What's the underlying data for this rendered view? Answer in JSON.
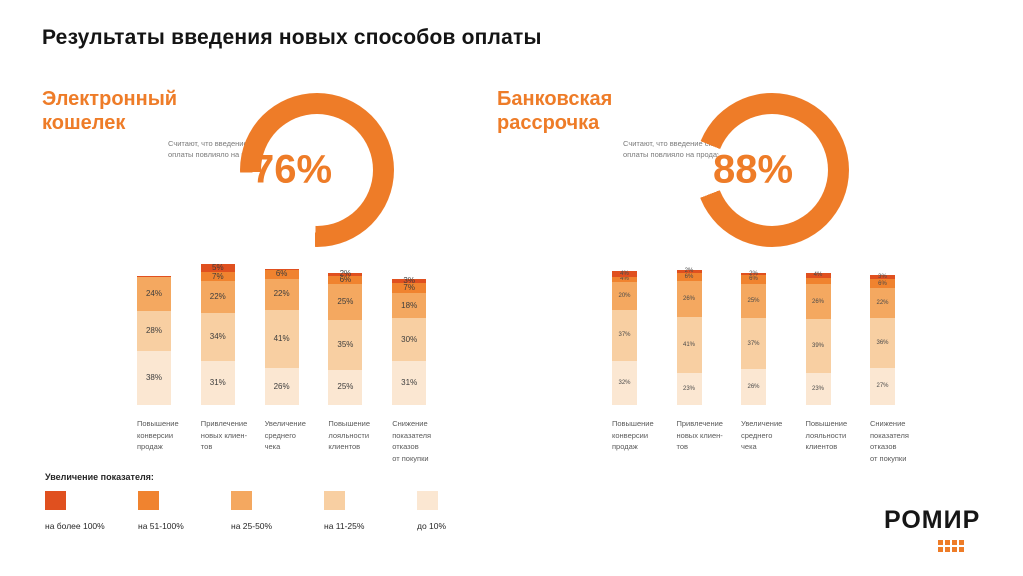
{
  "title": "Результаты введения новых способов оплаты",
  "brand": {
    "logo_text": "РОМИР",
    "accent": "#ee7c28"
  },
  "sections": [
    {
      "heading_line1": "Электронный",
      "heading_line2": "кошелек",
      "caption_line1": "Считают, что введение способа",
      "caption_line2": "оплаты повлияло на продажи",
      "percent": "76%",
      "percent_value": 76
    },
    {
      "heading_line1": "Банковская",
      "heading_line2": "рассрочка",
      "caption_line1": "Считают, что введение способа",
      "caption_line2": "оплаты повлияло на продажи",
      "percent": "88%",
      "percent_value": 88
    }
  ],
  "legend": {
    "title": "Увеличение показателя:",
    "items": [
      {
        "label": "на более 100%",
        "color": "#e0501f"
      },
      {
        "label": "на 51-100%",
        "color": "#f0832f"
      },
      {
        "label": "на 25-50%",
        "color": "#f4a860"
      },
      {
        "label": "на 11-25%",
        "color": "#f8cfa2"
      },
      {
        "label": "до 10%",
        "color": "#fbe7d2"
      }
    ]
  },
  "chart_data": [
    {
      "type": "stacked-bar",
      "title": "Электронный кошелек",
      "percent_affected": 76,
      "tiers_bottom_to_top": [
        "до 10%",
        "на 11-25%",
        "на 25-50%",
        "на 51-100%",
        "на более 100%"
      ],
      "categories": [
        "Повышение конверсии продаж",
        "Привлечение новых клиентов",
        "Увеличение среднего чека",
        "Повышение лояльности клиентов",
        "Снижение показателя отказов от покупки"
      ],
      "category_lines": [
        [
          "Повышение",
          "конверсии",
          "продаж"
        ],
        [
          "Привлечение",
          "новых клиен-",
          "тов"
        ],
        [
          "Увеличение",
          "среднего",
          "чека"
        ],
        [
          "Повышение",
          "лояльности",
          "клиентов"
        ],
        [
          "Снижение",
          "показателя",
          "отказов",
          "от покупки"
        ]
      ],
      "bars": [
        {
          "values": [
            38,
            28,
            24,
            0,
            1
          ],
          "labels": [
            "38%",
            "28%",
            "24%",
            "",
            ""
          ]
        },
        {
          "values": [
            31,
            34,
            22,
            7,
            5
          ],
          "labels": [
            "31%",
            "34%",
            "22%",
            "7%",
            "5%"
          ]
        },
        {
          "values": [
            26,
            41,
            22,
            6,
            1
          ],
          "labels": [
            "26%",
            "41%",
            "22%",
            "6%",
            ""
          ]
        },
        {
          "values": [
            25,
            35,
            25,
            6,
            2
          ],
          "labels": [
            "25%",
            "35%",
            "25%",
            "6%",
            "2%"
          ]
        },
        {
          "values": [
            31,
            30,
            18,
            7,
            3
          ],
          "labels": [
            "31%",
            "30%",
            "18%",
            "7%",
            "3%"
          ]
        }
      ]
    },
    {
      "type": "stacked-bar",
      "title": "Банковская рассрочка",
      "percent_affected": 88,
      "tiers_bottom_to_top": [
        "до 10%",
        "на 11-25%",
        "на 25-50%",
        "на 51-100%",
        "на более 100%"
      ],
      "categories": [
        "Повышение конверсии продаж",
        "Привлечение новых клиентов",
        "Увеличение среднего чека",
        "Повышение лояльности клиентов",
        "Снижение показателя отказов от покупки"
      ],
      "category_lines": [
        [
          "Повышение",
          "конверсии",
          "продаж"
        ],
        [
          "Привлечение",
          "новых клиен-",
          "тов"
        ],
        [
          "Увеличение",
          "среднего",
          "чека"
        ],
        [
          "Повышение",
          "лояльности",
          "клиентов"
        ],
        [
          "Снижение",
          "показателя",
          "отказов",
          "от покупки"
        ]
      ],
      "bars": [
        {
          "values": [
            32,
            37,
            20,
            4,
            4
          ],
          "labels": [
            "32%",
            "37%",
            "20%",
            "4%",
            "4%"
          ]
        },
        {
          "values": [
            23,
            41,
            26,
            6,
            2
          ],
          "labels": [
            "23%",
            "41%",
            "26%",
            "6%",
            "2%"
          ]
        },
        {
          "values": [
            26,
            37,
            25,
            6,
            2
          ],
          "labels": [
            "26%",
            "37%",
            "25%",
            "6%",
            "2%"
          ]
        },
        {
          "values": [
            23,
            39,
            26,
            4,
            4
          ],
          "labels": [
            "23%",
            "39%",
            "26%",
            "",
            "4%"
          ]
        },
        {
          "values": [
            27,
            36,
            22,
            6,
            3
          ],
          "labels": [
            "27%",
            "36%",
            "22%",
            "6%",
            "3%"
          ]
        }
      ]
    }
  ]
}
